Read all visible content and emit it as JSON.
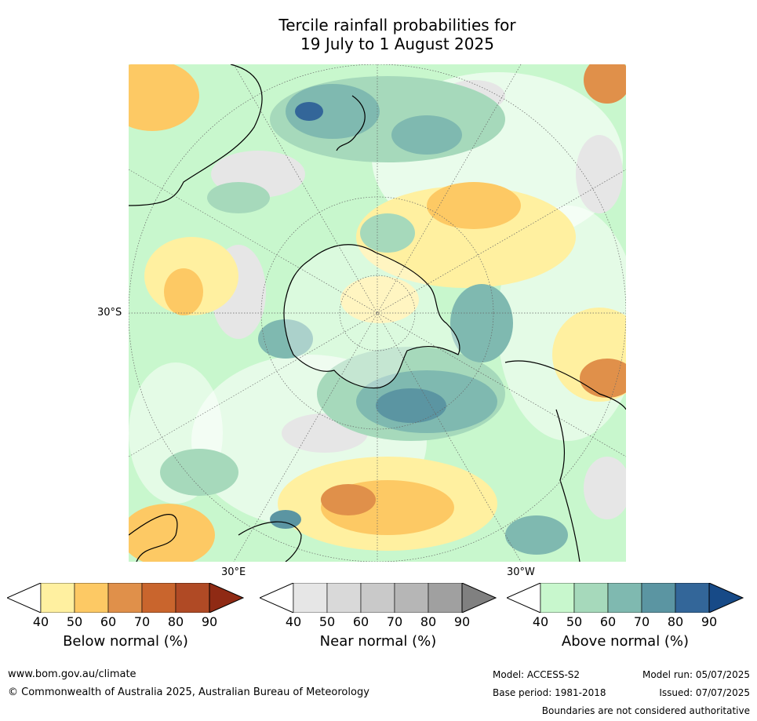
{
  "title_line1": "Tercile rainfall probabilities for",
  "title_line2": "19 July to 1 August 2025",
  "map": {
    "lat_label": "30°S",
    "lon_label_east": "30°E",
    "lon_label_west": "30°W"
  },
  "colorbars": [
    {
      "label": "Below normal (%)",
      "ticks": [
        "40",
        "50",
        "60",
        "70",
        "80",
        "90"
      ],
      "colors": [
        "#fff0a0",
        "#fdc964",
        "#e0904a",
        "#c9652d",
        "#b04a25",
        "#8f2a14"
      ]
    },
    {
      "label": "Near normal (%)",
      "ticks": [
        "40",
        "50",
        "60",
        "70",
        "80",
        "90"
      ],
      "colors": [
        "#e6e6e6",
        "#d9d9d9",
        "#c9c9c9",
        "#b6b6b6",
        "#a0a0a0",
        "#808080"
      ]
    },
    {
      "label": "Above normal (%)",
      "ticks": [
        "40",
        "50",
        "60",
        "70",
        "80",
        "90"
      ],
      "colors": [
        "#c8f7cd",
        "#a6d9bb",
        "#7fb9b0",
        "#5b95a2",
        "#336699",
        "#174a87"
      ]
    }
  ],
  "footer": {
    "url": "www.bom.gov.au/climate",
    "copyright": "© Commonwealth of Australia 2025, Australian Bureau of Meteorology",
    "model": "Model: ACCESS-S2",
    "base_period": "Base period: 1981-2018",
    "model_run": "Model run: 05/07/2025",
    "issued": "Issued: 07/07/2025",
    "disclaimer": "Boundaries are not considered authoritative"
  }
}
